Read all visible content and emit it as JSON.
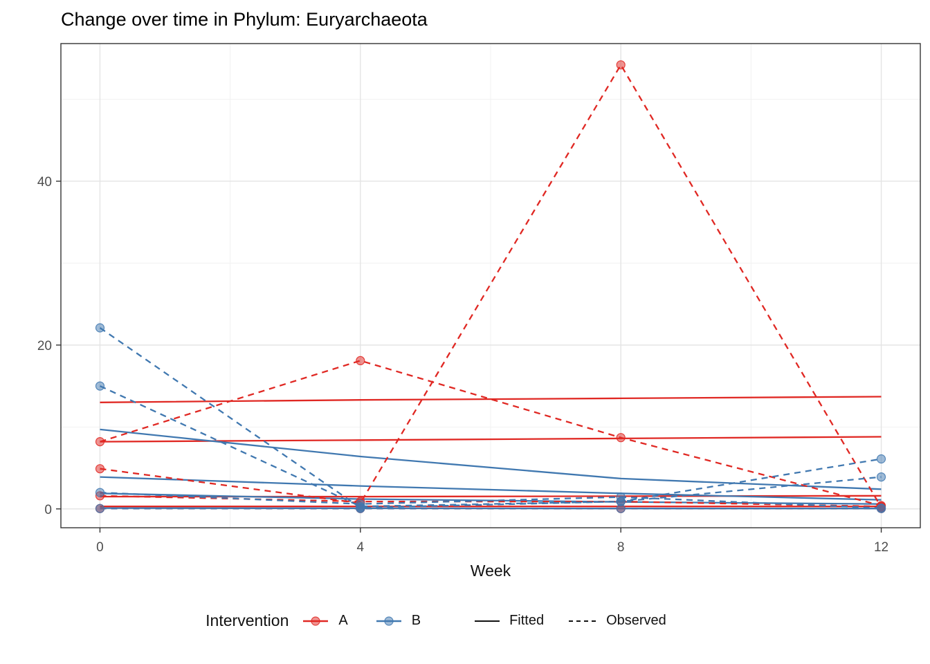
{
  "title": "Change over time in Phylum: Euryarchaeota",
  "legend": {
    "title": "Intervention",
    "groups": [
      {
        "label": "A",
        "color": "#e02823"
      },
      {
        "label": "B",
        "color": "#4078b0"
      }
    ],
    "linetypes": [
      {
        "label": "Fitted",
        "style": "solid"
      },
      {
        "label": "Observed",
        "style": "dashed"
      }
    ]
  },
  "colors": {
    "A": "#e02823",
    "B": "#4078b0",
    "grid_major": "#e4e4e4",
    "grid_minor": "#f1f1f1",
    "axis_text": "#4d4d4d",
    "text": "#111111",
    "border": "#333333",
    "legend_key": "#111111"
  },
  "chart_data": {
    "type": "line",
    "title": "Change over time in Phylum: Euryarchaeota",
    "xlabel": "Week",
    "ylabel": "",
    "x": [
      0,
      4,
      8,
      12
    ],
    "x_ticks": [
      0,
      4,
      8,
      12
    ],
    "x_minor_ticks": [
      2,
      6,
      10
    ],
    "y_ticks": [
      0,
      20,
      40
    ],
    "y_minor_ticks": [
      10,
      30,
      50
    ],
    "xlim": [
      -0.6,
      12.6
    ],
    "ylim": [
      -2.3,
      56.8
    ],
    "grid": true,
    "legend_position": "bottom",
    "series": [
      {
        "intervention": "A",
        "subject": 1,
        "linetype": "fitted",
        "values": [
          13.0,
          13.3,
          13.5,
          13.7
        ]
      },
      {
        "intervention": "A",
        "subject": 2,
        "linetype": "fitted",
        "values": [
          8.2,
          8.4,
          8.6,
          8.8
        ]
      },
      {
        "intervention": "A",
        "subject": 3,
        "linetype": "fitted",
        "values": [
          1.5,
          1.5,
          1.55,
          1.6
        ]
      },
      {
        "intervention": "A",
        "subject": 4,
        "linetype": "fitted",
        "values": [
          0.3,
          0.3,
          0.3,
          0.3
        ]
      },
      {
        "intervention": "B",
        "subject": 1,
        "linetype": "fitted",
        "values": [
          9.7,
          6.4,
          3.7,
          2.4
        ]
      },
      {
        "intervention": "B",
        "subject": 2,
        "linetype": "fitted",
        "values": [
          3.9,
          2.8,
          1.9,
          1.1
        ]
      },
      {
        "intervention": "B",
        "subject": 3,
        "linetype": "fitted",
        "values": [
          1.9,
          1.2,
          0.85,
          0.6
        ]
      },
      {
        "intervention": "B",
        "subject": 4,
        "linetype": "fitted",
        "values": [
          0.1,
          0.07,
          0.05,
          0.05
        ]
      },
      {
        "intervention": "A",
        "subject": 1,
        "linetype": "observed",
        "values": [
          8.2,
          18.1,
          8.7,
          0.4
        ]
      },
      {
        "intervention": "A",
        "subject": 2,
        "linetype": "observed",
        "values": [
          4.9,
          0.7,
          54.2,
          0.2
        ]
      },
      {
        "intervention": "A",
        "subject": 3,
        "linetype": "observed",
        "values": [
          1.6,
          0.9,
          0.9,
          0.3
        ]
      },
      {
        "intervention": "A",
        "subject": 4,
        "linetype": "observed",
        "values": [
          0.05,
          0.05,
          0.05,
          0.05
        ]
      },
      {
        "intervention": "B",
        "subject": 1,
        "linetype": "observed",
        "values": [
          22.1,
          0.15,
          0.9,
          6.1
        ]
      },
      {
        "intervention": "B",
        "subject": 2,
        "linetype": "observed",
        "values": [
          15.0,
          0.3,
          0.9,
          3.9
        ]
      },
      {
        "intervention": "B",
        "subject": 3,
        "linetype": "observed",
        "values": [
          2.0,
          0.6,
          1.45,
          0.1
        ]
      },
      {
        "intervention": "B",
        "subject": 4,
        "linetype": "observed",
        "values": [
          0.05,
          0.05,
          0.05,
          0.05
        ]
      }
    ]
  }
}
